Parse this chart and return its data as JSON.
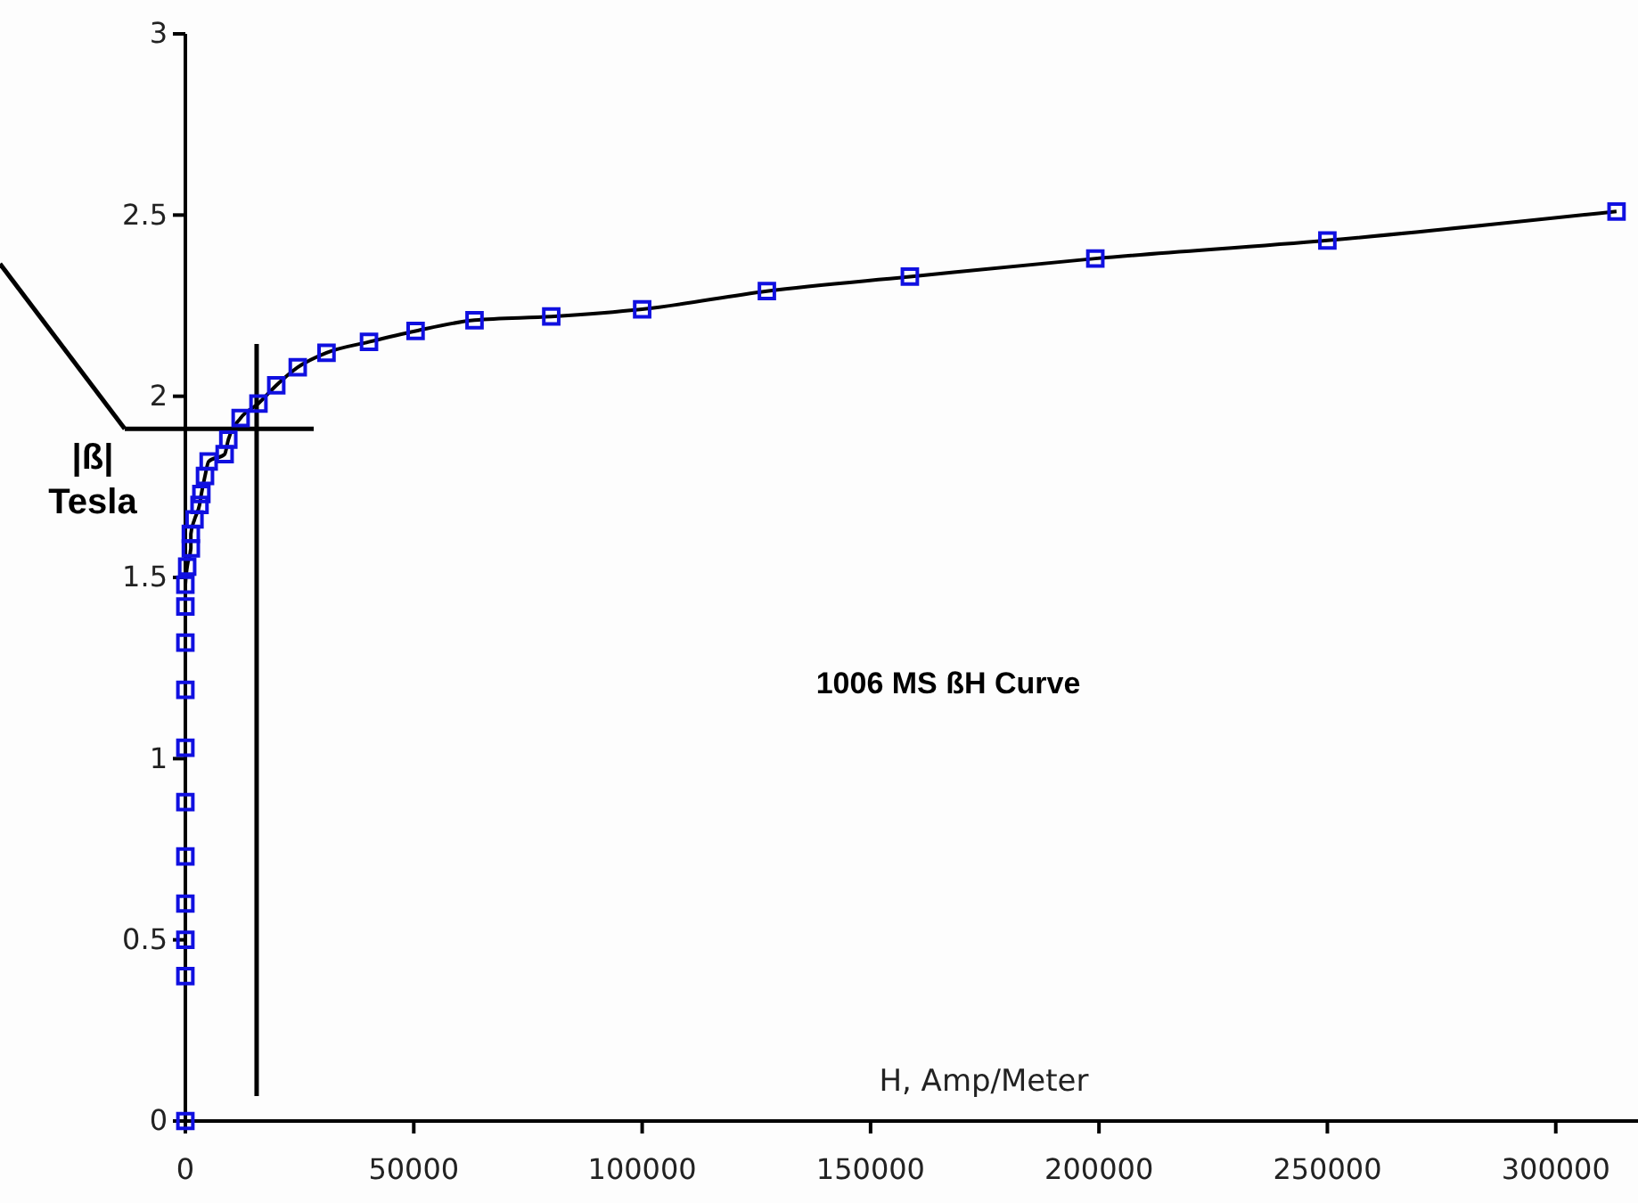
{
  "chart_data": {
    "type": "line",
    "title": "1006 MS ßH Curve",
    "xlabel": "H, Amp/Meter",
    "ylabel": "|ß| Tesla",
    "xlim": [
      0,
      318000
    ],
    "xticks": [
      0,
      50000,
      100000,
      150000,
      200000,
      250000,
      300000
    ],
    "ylim": [
      0,
      3
    ],
    "yticks": [
      0,
      0.5,
      1,
      1.5,
      2,
      2.5,
      3
    ],
    "marker": "square",
    "line_style": "solid",
    "grid": false,
    "ref_lines": [
      {
        "axis": "x",
        "value": 15600,
        "color": "#000000"
      },
      {
        "axis": "y",
        "value": 1.91,
        "color": "#000000"
      }
    ],
    "series": [
      {
        "color": "#1010e0",
        "x": [
          0,
          0,
          0,
          0,
          0,
          0,
          0,
          0,
          0,
          0,
          0,
          400,
          1200,
          1200,
          2000,
          3100,
          3500,
          4300,
          5100,
          8600,
          9400,
          12100,
          16000,
          19900,
          24600,
          30900,
          40200,
          50400,
          63300,
          80100,
          100000,
          127300,
          158600,
          199200,
          250000,
          313300
        ],
        "values": [
          0,
          0.4,
          0.5,
          0.6,
          0.73,
          0.88,
          1.03,
          1.19,
          1.32,
          1.42,
          1.48,
          1.53,
          1.58,
          1.62,
          1.66,
          1.7,
          1.73,
          1.78,
          1.82,
          1.84,
          1.88,
          1.94,
          1.98,
          2.03,
          2.08,
          2.12,
          2.15,
          2.18,
          2.21,
          2.22,
          2.24,
          2.29,
          2.33,
          2.38,
          2.43,
          2.51
        ]
      }
    ]
  }
}
